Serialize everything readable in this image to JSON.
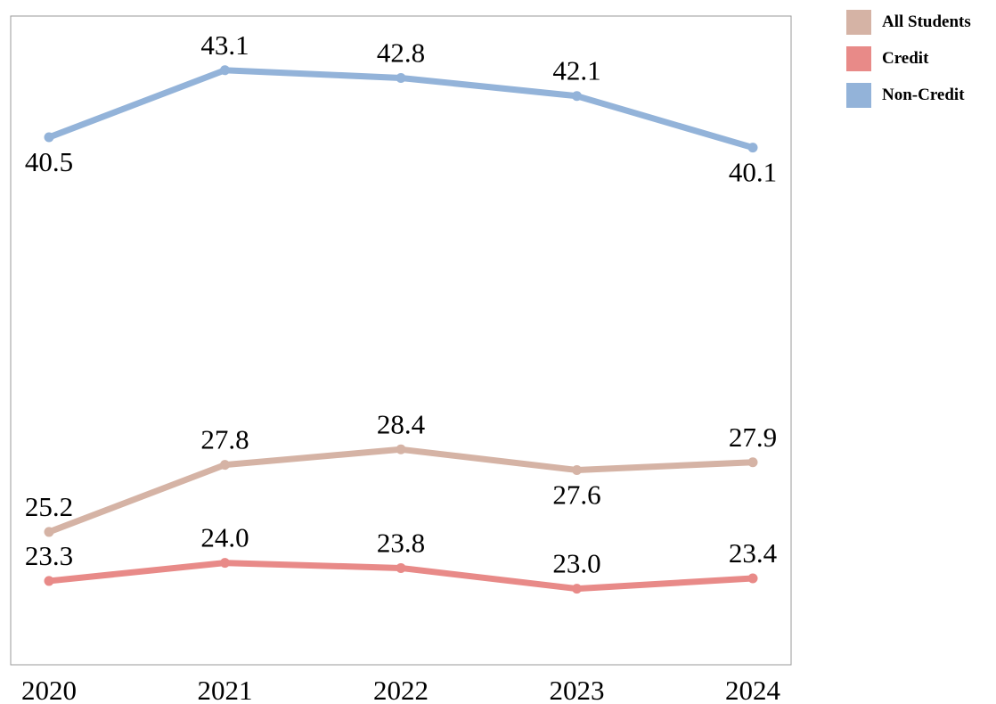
{
  "chart_data": {
    "type": "line",
    "categories": [
      "2020",
      "2021",
      "2022",
      "2023",
      "2024"
    ],
    "series": [
      {
        "name": "All Students",
        "color": "#d5b3a5",
        "values": [
          25.2,
          27.8,
          28.4,
          27.6,
          27.9
        ],
        "labels": [
          "25.2",
          "27.8",
          "28.4",
          "27.6",
          "27.9"
        ]
      },
      {
        "name": "Credit",
        "color": "#e88a88",
        "values": [
          23.3,
          24.0,
          23.8,
          23.0,
          23.4
        ],
        "labels": [
          "23.3",
          "24.0",
          "23.8",
          "23.0",
          "23.4"
        ]
      },
      {
        "name": "Non-Credit",
        "color": "#93b3d9",
        "values": [
          40.5,
          43.1,
          42.8,
          42.1,
          40.1
        ],
        "labels": [
          "40.5",
          "43.1",
          "42.8",
          "42.1",
          "40.1"
        ]
      }
    ],
    "ylim": [
      20.05,
      45.2
    ],
    "grid": false,
    "legend_position": "top-right"
  }
}
